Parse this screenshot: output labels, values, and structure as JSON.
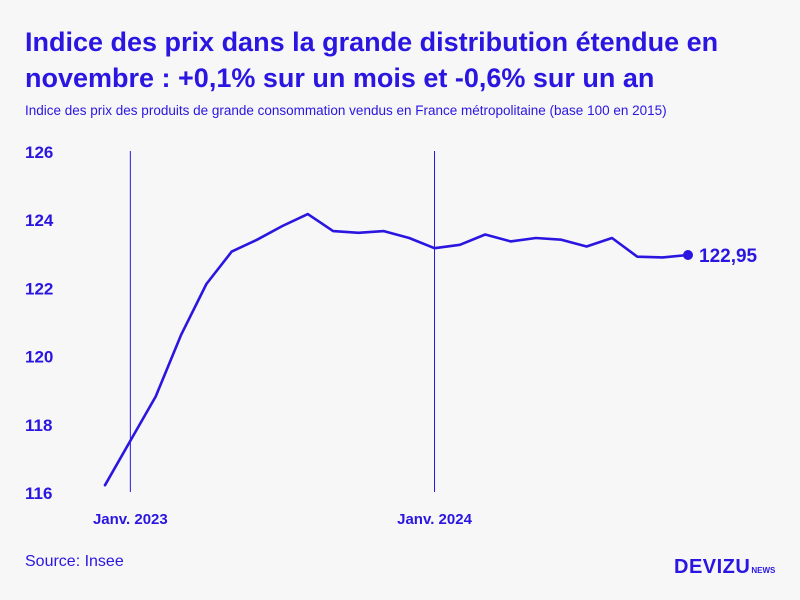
{
  "title": "Indice des prix dans la grande distribution étendue en novembre : +0,1% sur un mois et -0,6% sur un an",
  "subtitle": "Indice des prix des produits de grande consommation vendus en France métropolitaine (base 100 en 2015)",
  "source": "Source: Insee",
  "logo": {
    "main": "DEVIZU",
    "sub": "NEWS"
  },
  "colors": {
    "primary": "#2a16e0",
    "background": "#f7f7f7"
  },
  "chart_data": {
    "type": "line",
    "title": "Indice des prix dans la grande distribution étendue en novembre : +0,1% sur un mois et -0,6% sur un an",
    "subtitle": "Indice des prix des produits de grande consommation vendus en France métropolitaine (base 100 en 2015)",
    "xlabel": "",
    "ylabel": "",
    "ylim": [
      116,
      126
    ],
    "yticks": [
      "116",
      "118",
      "120",
      "122",
      "124",
      "126"
    ],
    "x": [
      "2022-12",
      "2023-01",
      "2023-02",
      "2023-03",
      "2023-04",
      "2023-05",
      "2023-06",
      "2023-07",
      "2023-08",
      "2023-09",
      "2023-10",
      "2023-11",
      "2023-12",
      "2024-01",
      "2024-02",
      "2024-03",
      "2024-04",
      "2024-05",
      "2024-06",
      "2024-07",
      "2024-08",
      "2024-09",
      "2024-10",
      "2024-11"
    ],
    "x_markers": [
      {
        "x": "2023-01",
        "label": "Janv. 2023"
      },
      {
        "x": "2024-01",
        "label": "Janv. 2024"
      }
    ],
    "series": [
      {
        "values": [
          116.2,
          117.5,
          118.8,
          120.6,
          122.1,
          123.05,
          123.4,
          123.8,
          124.15,
          123.65,
          123.6,
          123.65,
          123.45,
          123.15,
          123.25,
          123.55,
          123.35,
          123.45,
          123.4,
          123.2,
          123.45,
          122.9,
          122.88,
          122.95
        ]
      }
    ],
    "end_label": "122,95",
    "grid": false
  }
}
